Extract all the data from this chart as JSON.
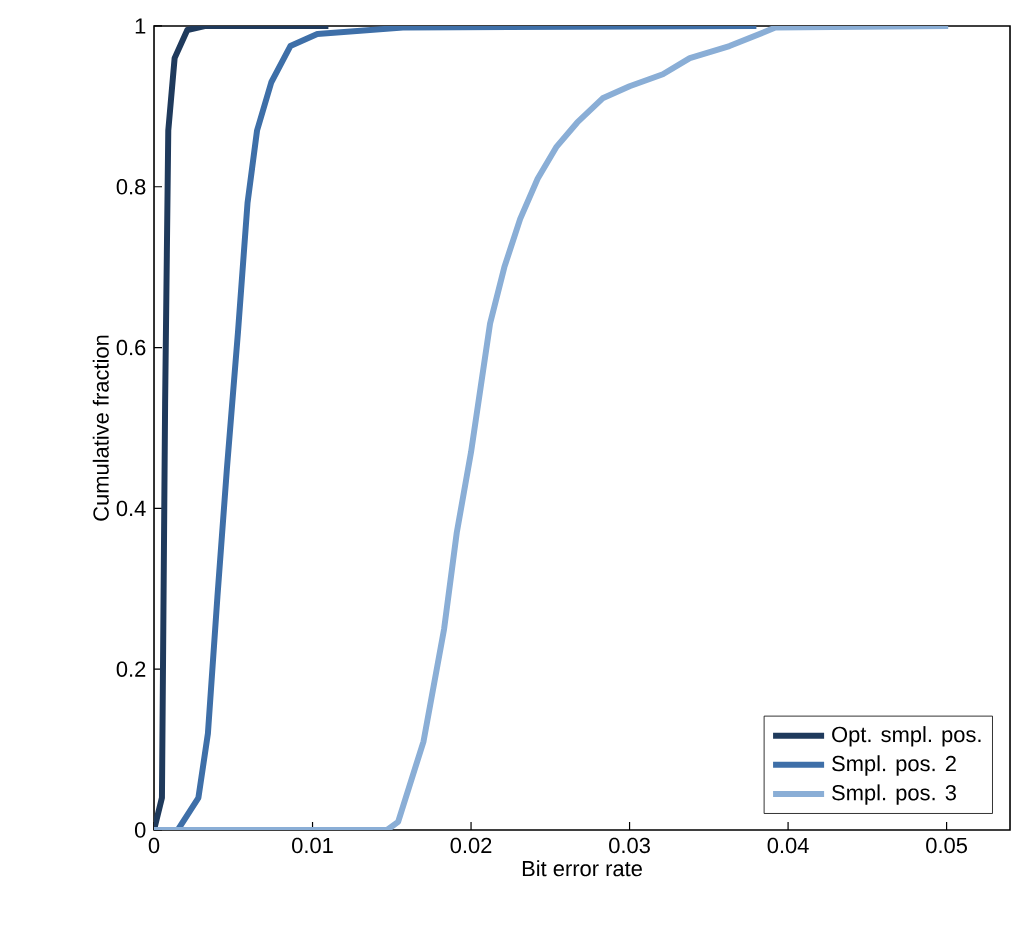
{
  "chart_data": {
    "type": "line",
    "xlabel": "Bit error rate",
    "ylabel": "Cumulative fraction",
    "xlim": [
      0,
      0.054
    ],
    "ylim": [
      0,
      1
    ],
    "xticks": [
      0,
      0.01,
      0.02,
      0.03,
      0.04,
      0.05
    ],
    "yticks": [
      0,
      0.2,
      0.4,
      0.6,
      0.8,
      1
    ],
    "grid": false,
    "legend": "bottom right",
    "marker": "none",
    "line_style": "solid",
    "series": [
      {
        "name": "Opt. smpl. pos.",
        "color": "#1f3a5c",
        "x": [
          0,
          0.0005,
          0.0007,
          0.0009,
          0.0013,
          0.0021,
          0.0032,
          0.011
        ],
        "values": [
          0,
          0.04,
          0.53,
          0.87,
          0.96,
          0.995,
          1,
          1
        ]
      },
      {
        "name": "Smpl. pos. 2",
        "color": "#3e6fa8",
        "x": [
          0,
          0.0015,
          0.0028,
          0.0034,
          0.004,
          0.0046,
          0.0053,
          0.0059,
          0.0065,
          0.0074,
          0.0086,
          0.0103,
          0.0157,
          0.038
        ],
        "values": [
          0,
          0,
          0.04,
          0.12,
          0.29,
          0.45,
          0.62,
          0.78,
          0.87,
          0.93,
          0.975,
          0.99,
          0.998,
          1
        ]
      },
      {
        "name": "Smpl. pos. 3",
        "color": "#8aaed6",
        "x": [
          0,
          0.0147,
          0.0154,
          0.017,
          0.0183,
          0.0191,
          0.02,
          0.0206,
          0.0212,
          0.0221,
          0.0231,
          0.0242,
          0.0254,
          0.0267,
          0.0283,
          0.03,
          0.0321,
          0.0338,
          0.0363,
          0.0392,
          0.0501
        ],
        "values": [
          0,
          0,
          0.01,
          0.11,
          0.25,
          0.37,
          0.47,
          0.55,
          0.63,
          0.7,
          0.76,
          0.81,
          0.85,
          0.88,
          0.91,
          0.925,
          0.94,
          0.96,
          0.975,
          0.998,
          1
        ]
      }
    ]
  }
}
